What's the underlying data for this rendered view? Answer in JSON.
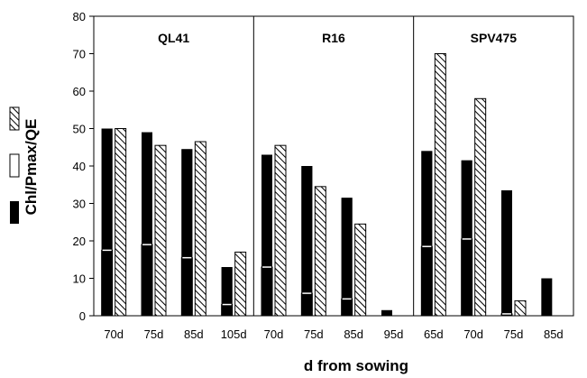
{
  "chart_data": {
    "type": "bar",
    "ylabel": "Chl/Pmax/QE",
    "xlabel": "d from sowing",
    "ylim": [
      0,
      80
    ],
    "yticks": [
      0,
      10,
      20,
      30,
      40,
      50,
      60,
      70,
      80
    ],
    "grid": false,
    "legend_position": "left",
    "series": [
      {
        "key": "chl",
        "style": "solid-black"
      },
      {
        "key": "pmax",
        "style": "white"
      },
      {
        "key": "qe",
        "style": "hatched"
      }
    ],
    "panels": [
      {
        "title": "QL41",
        "categories": [
          "70d",
          "75d",
          "85d",
          "105d"
        ],
        "chl": [
          50,
          49,
          44.5,
          13
        ],
        "pmax": [
          17.5,
          19,
          15.5,
          3
        ],
        "qe": [
          50,
          45.5,
          46.5,
          17
        ]
      },
      {
        "title": "R16",
        "categories": [
          "70d",
          "75d",
          "85d",
          "95d"
        ],
        "chl": [
          43,
          40,
          31.5,
          1.5
        ],
        "pmax": [
          13,
          6,
          4.5,
          0
        ],
        "qe": [
          45.5,
          34.5,
          24.5,
          0
        ]
      },
      {
        "title": "SPV475",
        "categories": [
          "65d",
          "70d",
          "75d",
          "85d"
        ],
        "chl": [
          44,
          41.5,
          33.5,
          10
        ],
        "pmax": [
          18.5,
          20.5,
          0.5,
          0
        ],
        "qe": [
          70,
          58,
          4,
          0
        ]
      }
    ]
  }
}
